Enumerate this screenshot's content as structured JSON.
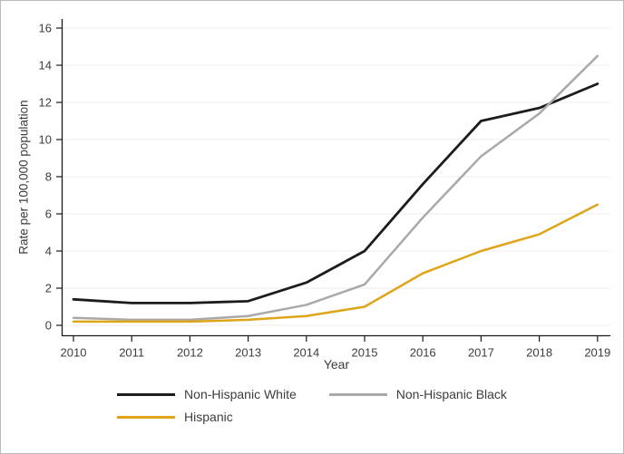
{
  "chart_data": {
    "type": "line",
    "title": "",
    "xlabel": "Year",
    "ylabel": "Rate per 100,000 population",
    "x": [
      2010,
      2011,
      2012,
      2013,
      2014,
      2015,
      2016,
      2017,
      2018,
      2019
    ],
    "x_tick_labels": [
      "2010",
      "2011",
      "2012",
      "2013",
      "2014",
      "2015",
      "2016",
      "2017",
      "2018",
      "2019"
    ],
    "yticks": [
      0,
      2,
      4,
      6,
      8,
      10,
      12,
      14,
      16
    ],
    "y_tick_labels": [
      "0",
      "2",
      "4",
      "6",
      "8",
      "10",
      "12",
      "14",
      "16"
    ],
    "ylim": [
      0,
      16
    ],
    "grid": "horizontal",
    "grid_color": "#ececec",
    "axis_color": "#1a1a1a",
    "text_color": "#3d3d3d",
    "legend_position": "bottom-center",
    "series": [
      {
        "name": "Non-Hispanic White",
        "color": "#1c1c1c",
        "values": [
          1.4,
          1.2,
          1.2,
          1.3,
          2.3,
          4.0,
          7.6,
          11.0,
          11.7,
          13.0
        ]
      },
      {
        "name": "Non-Hispanic Black",
        "color": "#a9a9a9",
        "values": [
          0.4,
          0.3,
          0.3,
          0.5,
          1.1,
          2.2,
          5.8,
          9.1,
          11.4,
          14.5
        ]
      },
      {
        "name": "Hispanic",
        "color": "#e0a418",
        "values": [
          0.2,
          0.2,
          0.2,
          0.3,
          0.5,
          1.0,
          2.8,
          4.0,
          4.9,
          6.5
        ]
      }
    ]
  }
}
